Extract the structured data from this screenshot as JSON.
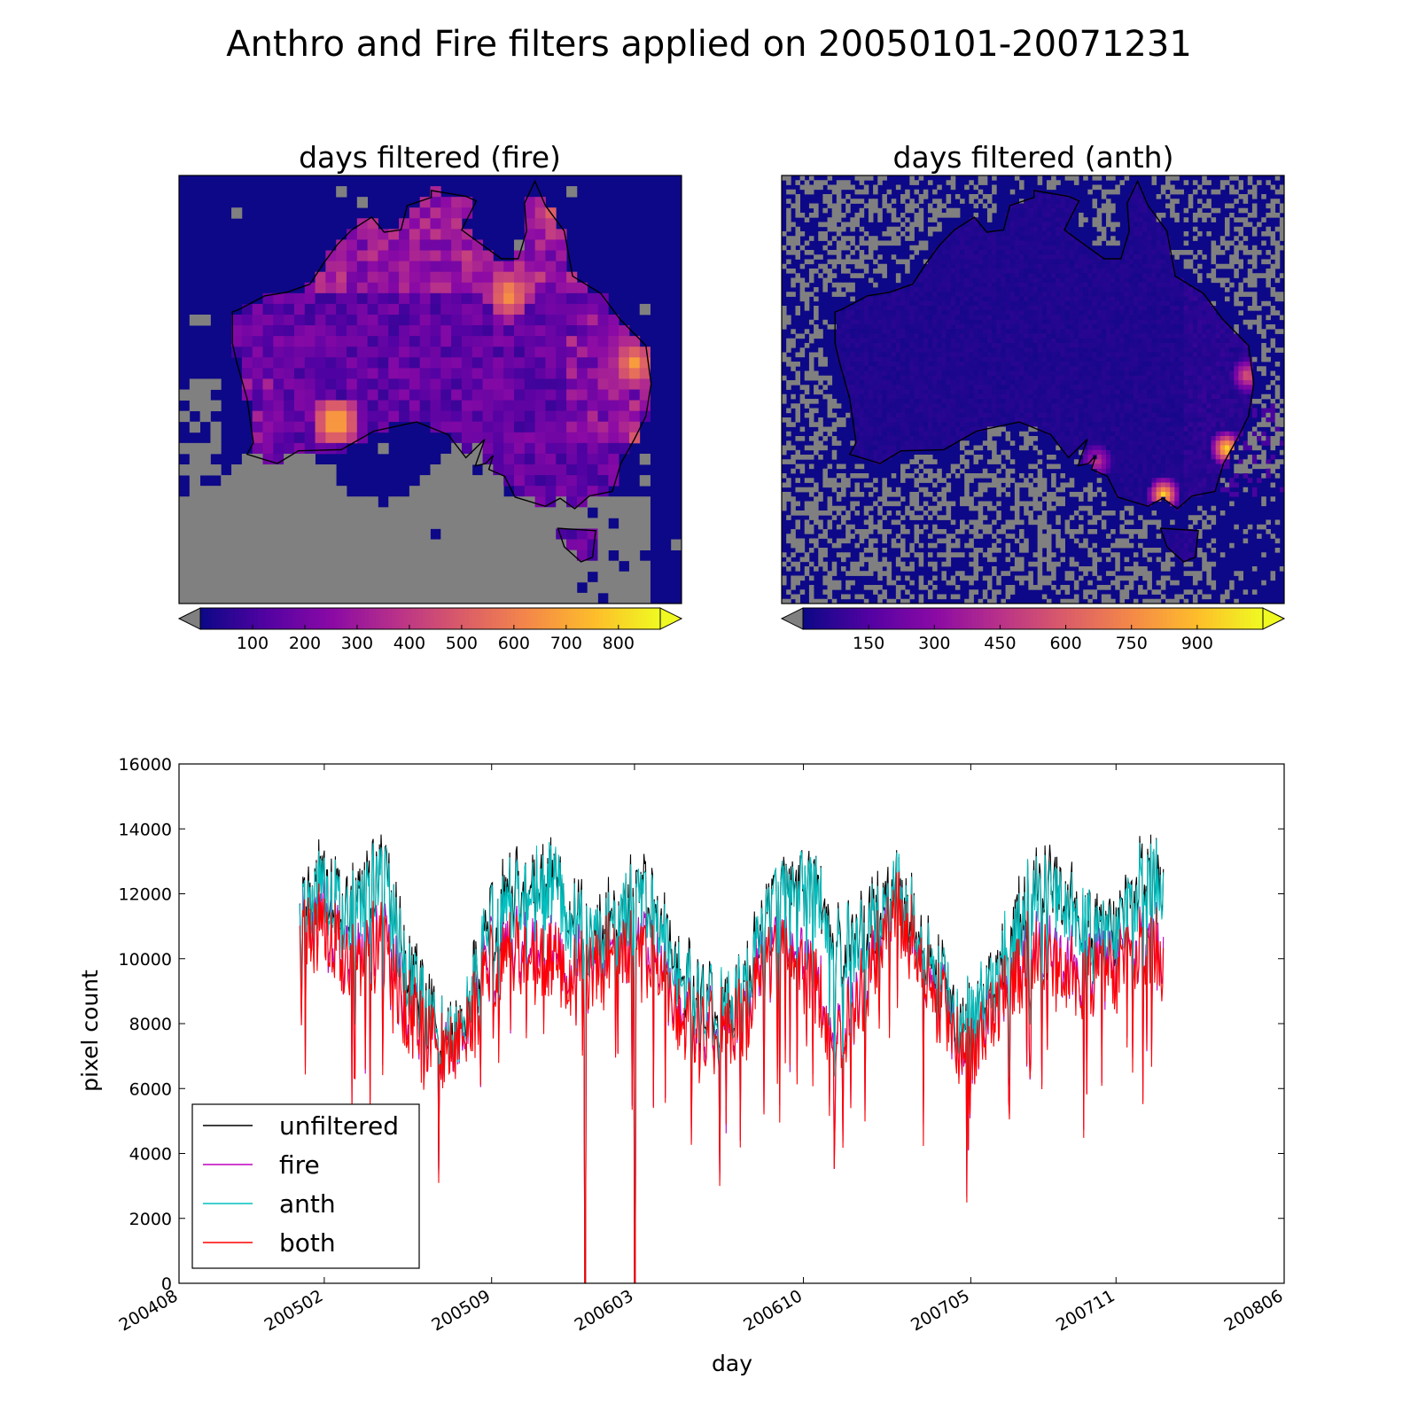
{
  "figure": {
    "title": "Anthro and Fire filters applied on 20050101-20071231"
  },
  "maps": [
    {
      "title": "days filtered (fire)",
      "colorbar": {
        "ticks": [
          "100",
          "200",
          "300",
          "400",
          "500",
          "600",
          "700",
          "800"
        ],
        "tick_values": [
          100,
          200,
          300,
          400,
          500,
          600,
          700,
          800
        ],
        "range": [
          0,
          880
        ],
        "colormap": "plasma",
        "under_color": "#808080",
        "over_color": "#f0f921"
      },
      "hotspots": [
        {
          "lon": 152.0,
          "lat": -26.5,
          "value": 700
        },
        {
          "lon": 144.0,
          "lat": -13.5,
          "value": 520
        },
        {
          "lon": 123.5,
          "lat": -31.5,
          "value": 800
        },
        {
          "lon": 140.0,
          "lat": -20.5,
          "value": 700
        },
        {
          "lon": 153.5,
          "lat": -33.5,
          "value": 820
        }
      ]
    },
    {
      "title": "days filtered (anth)",
      "colorbar": {
        "ticks": [
          "150",
          "300",
          "450",
          "600",
          "750",
          "900"
        ],
        "tick_values": [
          150,
          300,
          450,
          600,
          750,
          900
        ],
        "range": [
          0,
          1050
        ],
        "colormap": "plasma",
        "under_color": "#808080",
        "over_color": "#f0f921"
      },
      "hotspots": [
        {
          "lon": 151.0,
          "lat": -33.8,
          "value": 1000
        },
        {
          "lon": 145.0,
          "lat": -37.8,
          "value": 1000
        },
        {
          "lon": 153.0,
          "lat": -27.5,
          "value": 600
        },
        {
          "lon": 138.6,
          "lat": -34.9,
          "value": 500
        }
      ]
    }
  ],
  "chart_data": {
    "type": "line",
    "title": "",
    "xlabel": "day",
    "ylabel": "pixel count",
    "x_tick_labels": [
      "200408",
      "200502",
      "200509",
      "200603",
      "200610",
      "200705",
      "200711",
      "200806"
    ],
    "ylim": [
      0,
      16000
    ],
    "y_ticks": [
      "0",
      "2000",
      "4000",
      "6000",
      "8000",
      "10000",
      "12000",
      "14000",
      "16000"
    ],
    "x_range": [
      "2004-08-01",
      "2008-06-01"
    ],
    "data_range": [
      "2005-01-01",
      "2007-12-31"
    ],
    "legend_position": "lower-left",
    "series": [
      {
        "name": "unfiltered",
        "color": "#000000",
        "values": [
          11000,
          12500,
          11500,
          12500,
          12500,
          10000,
          8200,
          7500,
          8500,
          11000,
          12200,
          12200,
          12500,
          11500,
          10500,
          11500,
          12000,
          11500,
          9800,
          8600,
          8500,
          9000,
          11000,
          12500,
          12500,
          11500,
          10500,
          11000,
          12300,
          11500,
          10000,
          8400,
          8100,
          9500,
          11000,
          12500,
          12500,
          11300,
          10500,
          11000,
          12600,
          12500
        ]
      },
      {
        "name": "fire",
        "color": "#bf00bf",
        "values": [
          10500,
          11200,
          10200,
          10500,
          10500,
          8600,
          7500,
          7300,
          8000,
          9800,
          10600,
          10300,
          10000,
          9800,
          9600,
          10600,
          10200,
          10100,
          8500,
          7700,
          7900,
          8300,
          9800,
          10500,
          9900,
          8300,
          8200,
          9500,
          11800,
          11000,
          9300,
          7900,
          7000,
          8700,
          9800,
          10500,
          10200,
          9500,
          9500,
          9700,
          10500,
          10200
        ]
      },
      {
        "name": "anth",
        "color": "#00bfbf",
        "values": [
          10800,
          12300,
          11300,
          12300,
          12300,
          9800,
          8100,
          7400,
          8400,
          10800,
          12000,
          12000,
          12300,
          11300,
          10300,
          11300,
          11800,
          11300,
          9600,
          8500,
          8400,
          8900,
          10800,
          12300,
          12300,
          11300,
          10300,
          10800,
          12100,
          11300,
          9800,
          8300,
          8000,
          9400,
          10800,
          12300,
          12300,
          11100,
          10300,
          10800,
          12400,
          12300
        ]
      },
      {
        "name": "both",
        "color": "#ff0000",
        "values": [
          10300,
          11000,
          10000,
          10300,
          10300,
          8400,
          7400,
          7200,
          7900,
          9600,
          10400,
          10100,
          9800,
          9600,
          9400,
          10400,
          10000,
          9900,
          8300,
          7600,
          7800,
          8200,
          9600,
          10300,
          9700,
          8100,
          8000,
          9300,
          11600,
          10800,
          9100,
          7800,
          6900,
          8600,
          9600,
          10300,
          10000,
          9300,
          9300,
          9500,
          10300,
          10000
        ]
      }
    ]
  }
}
